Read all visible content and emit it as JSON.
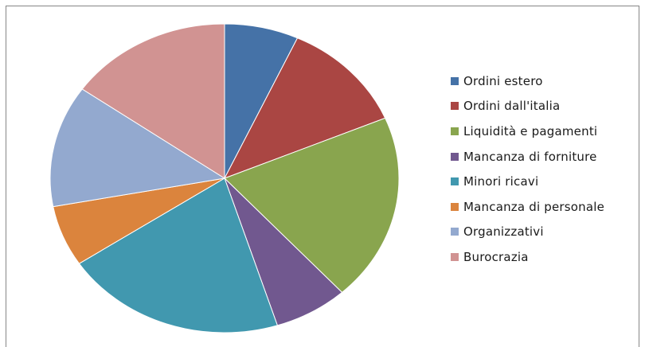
{
  "chart_data": {
    "type": "pie",
    "title": "",
    "legend_position": "right",
    "slices": [
      {
        "label": "Ordini estero",
        "value": 7,
        "color": "#4572A7"
      },
      {
        "label": "Ordini dall'italia",
        "value": 12,
        "color": "#AA4643"
      },
      {
        "label": "Liquidità e pagamenti",
        "value": 20,
        "color": "#89A54E"
      },
      {
        "label": "Mancanza di forniture",
        "value": 7,
        "color": "#71588F"
      },
      {
        "label": "Minori ricavi",
        "value": 21,
        "color": "#4198AF"
      },
      {
        "label": "Mancanza di personale",
        "value": 6.5,
        "color": "#DB843D"
      },
      {
        "label": "Organizzativi",
        "value": 13,
        "color": "#93A9CF"
      },
      {
        "label": "Burocrazia",
        "value": 15.5,
        "color": "#D19392"
      }
    ]
  }
}
